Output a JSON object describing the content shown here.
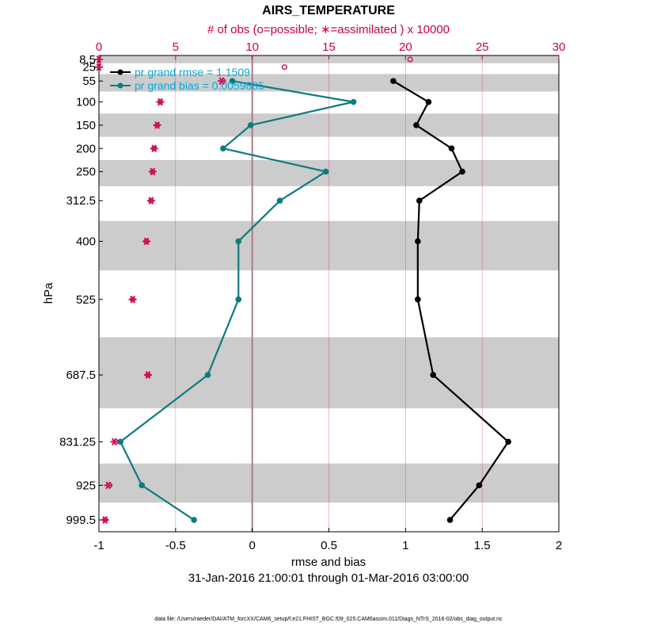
{
  "chart_data": {
    "type": "line",
    "title": "AIRS_TEMPERATURE",
    "top_axis_label": "# of obs (o=possible; ∗=assimilated ) x 10000",
    "xlabel": "rmse and bias",
    "ylabel": "hPa",
    "subtitle": "31-Jan-2016 21:00:01 through 01-Mar-2016 03:00:00",
    "footer": "data file: /Users/raeder/DAI/ATM_forcXX/CAM6_setup/f.e21.FHIST_BGC.f09_025.CAM6assim.011/Diags_NTrS_2016-02/obs_diag_output.nc",
    "xlim": [
      -1,
      2
    ],
    "xticks": [
      -1,
      -0.5,
      0,
      0.5,
      1,
      1.5,
      2
    ],
    "xtick_labels": [
      "-1",
      "-0.5",
      "0",
      "0.5",
      "1",
      "1.5",
      "2"
    ],
    "top_xlim": [
      0,
      30
    ],
    "top_xticks": [
      0,
      5,
      10,
      15,
      20,
      25,
      30
    ],
    "top_xtick_labels": [
      "0",
      "5",
      "10",
      "15",
      "20",
      "25",
      "30"
    ],
    "levels": [
      8.5,
      25,
      55,
      100,
      150,
      200,
      250,
      312.5,
      400,
      525,
      687.5,
      831.25,
      925,
      999.5
    ],
    "level_labels": [
      "8.5",
      "25",
      "55",
      "100",
      "150",
      "200",
      "250",
      "312.5",
      "400",
      "525",
      "687.5",
      "831.25",
      "925",
      "999.5"
    ],
    "series": [
      {
        "name": "pr grand rmse",
        "legend": "pr grand rmse = 1.1509",
        "color": "#000000",
        "levels": [
          55,
          100,
          150,
          200,
          250,
          312.5,
          400,
          525,
          687.5,
          831.25,
          925,
          999.5
        ],
        "values": [
          0.92,
          1.15,
          1.07,
          1.3,
          1.37,
          1.09,
          1.08,
          1.08,
          1.18,
          1.67,
          1.48,
          1.29
        ]
      },
      {
        "name": "pr grand bias",
        "legend": "pr grand bias = 0.0059885",
        "color": "#0b7c80",
        "levels": [
          55,
          100,
          150,
          200,
          250,
          312.5,
          400,
          525,
          687.5,
          831.25,
          925,
          999.5
        ],
        "values": [
          -0.13,
          0.66,
          -0.01,
          -0.19,
          0.48,
          0.18,
          -0.09,
          -0.09,
          -0.29,
          -0.86,
          -0.72,
          -0.38
        ]
      }
    ],
    "obs_possible": {
      "levels": [
        8.5,
        25,
        55,
        100,
        150,
        200,
        250,
        312.5,
        400,
        525,
        687.5,
        831.25,
        925,
        999.5
      ],
      "values": [
        20.3,
        12.1,
        8.1,
        4.0,
        3.8,
        3.6,
        3.5,
        3.4,
        3.1,
        2.2,
        3.2,
        1.1,
        0.7,
        0.4
      ]
    },
    "obs_assimilated": {
      "levels": [
        8.5,
        25,
        55,
        100,
        150,
        200,
        250,
        312.5,
        400,
        525,
        687.5,
        831.25,
        925,
        999.5
      ],
      "values": [
        0.0,
        0.0,
        8.0,
        4.0,
        3.8,
        3.6,
        3.5,
        3.4,
        3.1,
        2.2,
        3.2,
        1.0,
        0.6,
        0.4
      ]
    },
    "colors": {
      "top_axis": "#c8004a",
      "obs": "#d0105a",
      "band": "#cccccc",
      "grid": "#d6d6d6",
      "zero_line": "#b07a8a",
      "legend_text": "#0aa8d8"
    }
  }
}
